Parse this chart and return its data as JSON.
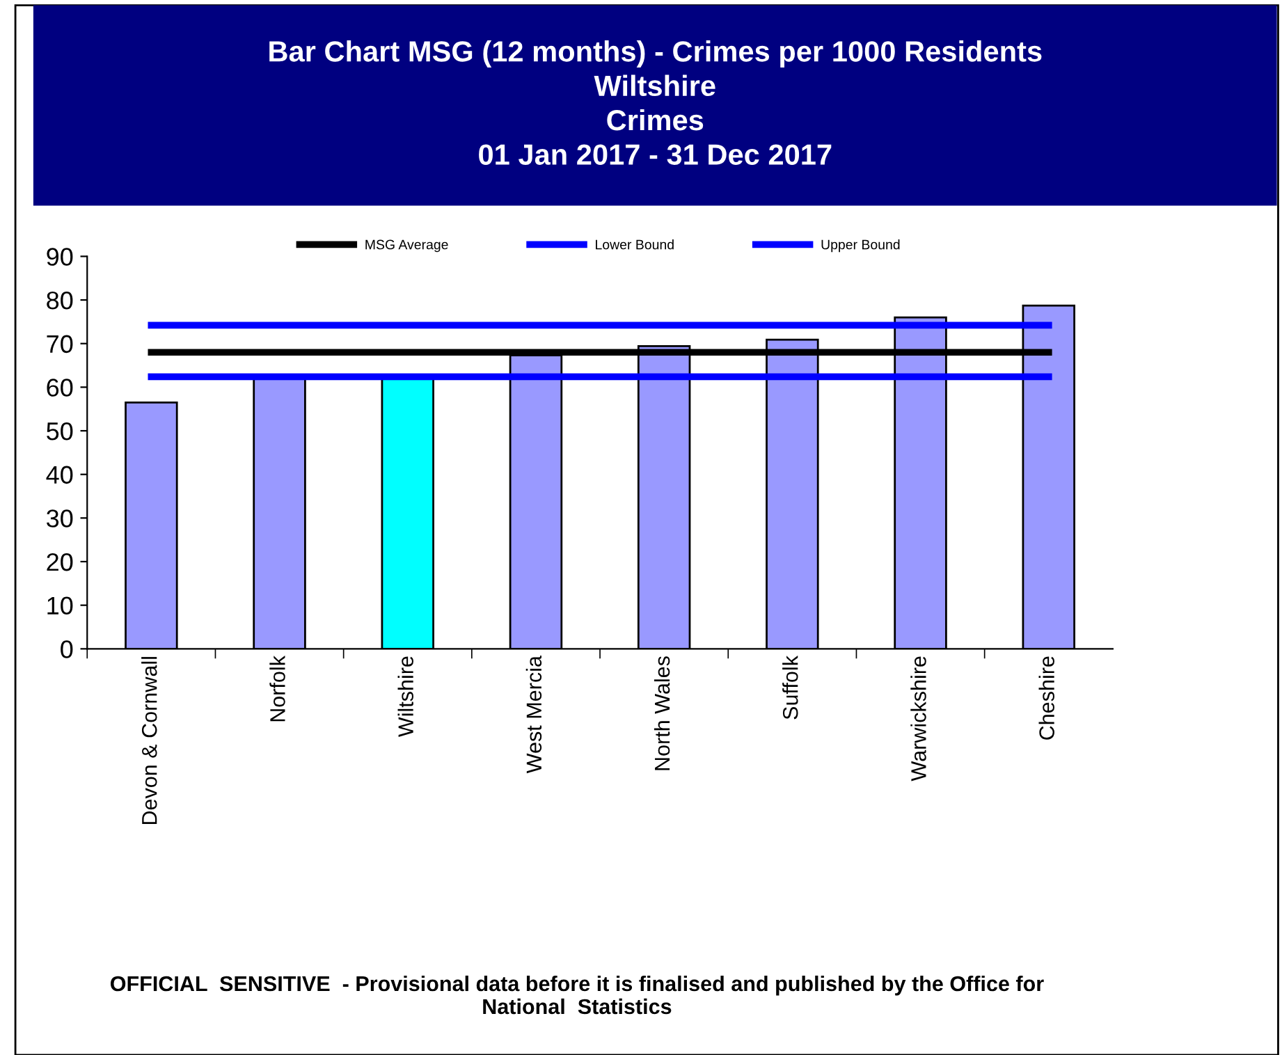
{
  "chart_data": {
    "type": "bar",
    "title": "Bar Chart MSG (12 months) - Crimes per 1000 Residents\nWiltshire\nCrimes\n01 Jan 2017 - 31 Dec 2017",
    "categories": [
      "Devon & Cornwall",
      "Norfolk",
      "Wiltshire",
      "West Mercia",
      "North Wales",
      "Suffolk",
      "Warwickshire",
      "Cheshire"
    ],
    "series": [
      {
        "values": [
          56.5,
          62,
          62,
          67.3,
          69.4,
          70.9,
          76,
          78.7
        ],
        "colors": [
          "#9999ff",
          "#9999ff",
          "#00ffff",
          "#9999ff",
          "#9999ff",
          "#9999ff",
          "#9999ff",
          "#9999ff"
        ]
      },
      {
        "type": "line",
        "name": "MSG Average",
        "color": "#000000",
        "values": [
          68,
          68,
          68,
          68,
          68,
          68,
          68,
          68
        ]
      },
      {
        "type": "line",
        "name": "Lower Bound",
        "color": "#0000ff",
        "values": [
          62.4,
          62.4,
          62.4,
          62.4,
          62.4,
          62.4,
          62.4,
          62.4
        ]
      },
      {
        "type": "line",
        "name": "Upper Bound",
        "color": "#0000ff",
        "values": [
          74.2,
          74.2,
          74.2,
          74.2,
          74.2,
          74.2,
          74.2,
          74.2
        ]
      }
    ],
    "ylim": [
      0,
      90
    ],
    "yticks": [
      0,
      10,
      20,
      30,
      40,
      50,
      60,
      70,
      80,
      90
    ],
    "grid": false,
    "legend": "top",
    "marker": "none",
    "line_style": "solid",
    "annotations": [
      "OFFICIAL  SENSITIVE  - Provisional data before it is finalised and published by the Office for\nNational  Statistics"
    ]
  }
}
